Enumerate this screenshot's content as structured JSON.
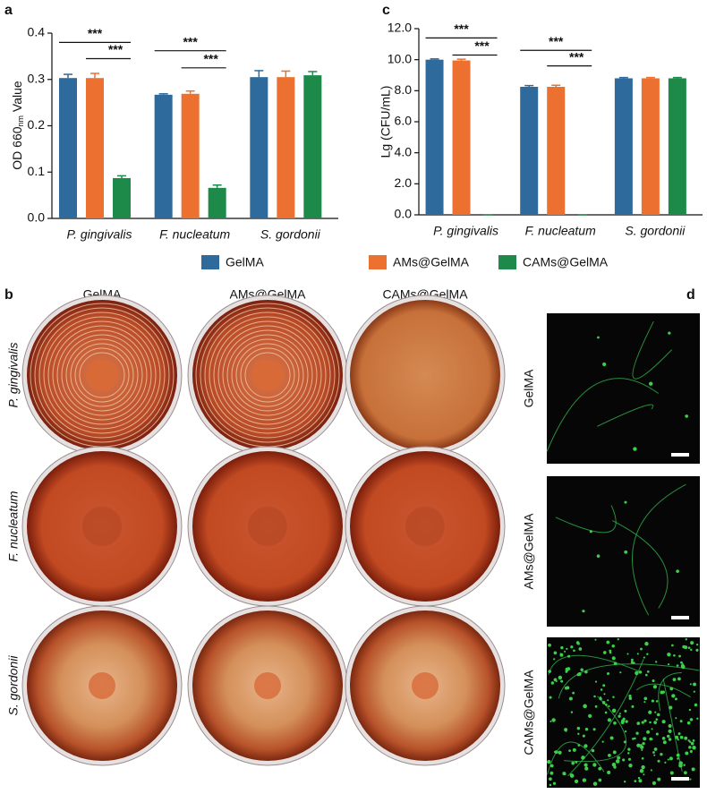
{
  "chart_data": [
    {
      "type": "bar",
      "panel": "a",
      "y_label": [
        "OD 660",
        "nm",
        " Value"
      ],
      "categories": [
        "P. gingivalis",
        "F. nucleatum",
        "S. gordonii"
      ],
      "series": [
        {
          "name": "GelMA",
          "color": "#2e6a9c",
          "values": [
            0.303,
            0.267,
            0.305
          ],
          "errors": [
            0.008,
            0.002,
            0.014
          ]
        },
        {
          "name": "AMs@GelMA",
          "color": "#ec7030",
          "values": [
            0.303,
            0.269,
            0.305
          ],
          "errors": [
            0.01,
            0.006,
            0.013
          ]
        },
        {
          "name": "CAMs@GelMA",
          "color": "#1d8a4a",
          "values": [
            0.087,
            0.066,
            0.309
          ],
          "errors": [
            0.005,
            0.006,
            0.008
          ]
        }
      ],
      "ylim": [
        0,
        0.4
      ],
      "yticks": [
        {
          "value": 0,
          "label": "0.0"
        },
        0.1,
        0.2,
        0.3,
        0.4
      ],
      "annotations": [
        {
          "text": "***"
        },
        {
          "text": "***"
        },
        {
          "text": "***"
        },
        {
          "text": "***"
        }
      ]
    },
    {
      "type": "bar",
      "panel": "c",
      "y_label": "Lg (CFU/mL)",
      "categories": [
        "P. gingivalis",
        "F. nucleatum",
        "S. gordonii"
      ],
      "series": [
        {
          "color": "#2e6a9c",
          "values": [
            10.0,
            8.25,
            8.8
          ],
          "errors": [
            0.05,
            0.08,
            0.05
          ]
        },
        {
          "color": "#ec7030",
          "values": [
            9.95,
            8.25,
            8.8
          ],
          "errors": [
            0.08,
            0.1,
            0.05
          ]
        },
        {
          "color": "#1d8a4a",
          "values": [
            0,
            0,
            8.8
          ],
          "errors": [
            0,
            0,
            0.05
          ]
        }
      ],
      "ylim": [
        0,
        12
      ],
      "yticks": [
        {
          "value": 0,
          "label": "0.0"
        },
        {
          "value": 2,
          "label": "2.0"
        },
        {
          "value": 4,
          "label": "4.0"
        },
        {
          "value": 6,
          "label": "6.0"
        },
        {
          "value": 8,
          "label": "8.0"
        },
        {
          "value": 10,
          "label": "10.0"
        },
        {
          "value": 12,
          "label": "12.0"
        }
      ],
      "annotations": [
        {
          "text": "***"
        },
        {
          "text": "***"
        },
        {
          "text": "***"
        },
        {
          "text": "***"
        }
      ]
    }
  ],
  "plates": {
    "panel": "b",
    "columns": [
      "GelMA",
      "AMs@GelMA",
      "CAMs@GelMA"
    ],
    "rows": [
      "P. gingivalis",
      "F. nucleatum",
      "S. gordonii"
    ]
  },
  "fluorescence": {
    "panel": "d",
    "rows": [
      "GelMA",
      "AMs@GelMA",
      "CAMs@GelMA"
    ]
  }
}
